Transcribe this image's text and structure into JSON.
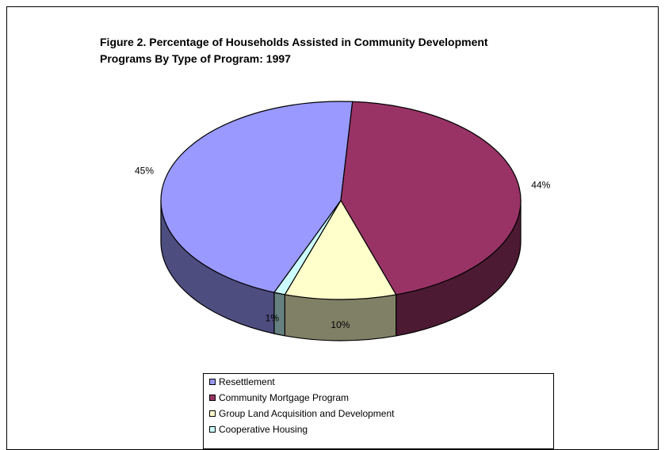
{
  "chart_data": {
    "type": "pie",
    "title": "Figure 2. Percentage of Households Assisted in Community Development Programs By Type of Program: 1997",
    "title_lines": [
      "Figure 2. Percentage of Households Assisted in Community Development",
      "Programs By Type of Program: 1997"
    ],
    "three_d": true,
    "legend_position": "bottom",
    "slices": [
      {
        "name": "Resettlement",
        "value": 45,
        "label": "45%",
        "color": "#9999ff",
        "side_color": "#4d4d80"
      },
      {
        "name": "Community Mortgage Program",
        "value": 44,
        "label": "44%",
        "color": "#993366",
        "side_color": "#4d1a33"
      },
      {
        "name": "Group Land Acquisition  and Development",
        "value": 10,
        "label": "10%",
        "color": "#ffffcc",
        "side_color": "#808066"
      },
      {
        "name": "Cooperative Housing",
        "value": 1,
        "label": "1%",
        "color": "#ccffff",
        "side_color": "#668080"
      }
    ]
  }
}
